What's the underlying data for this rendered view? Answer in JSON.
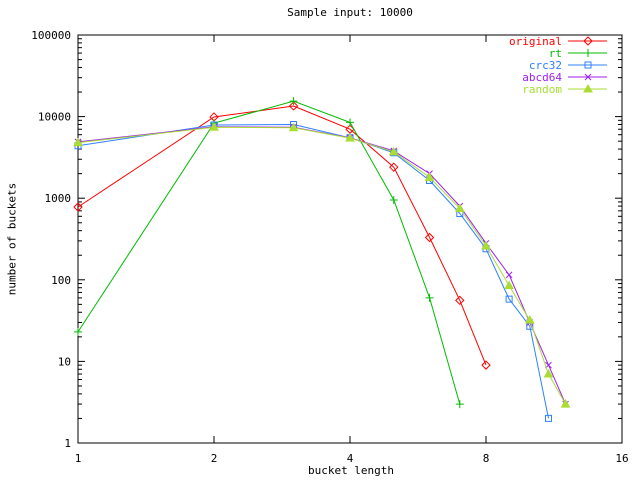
{
  "title": "Sample input: 10000",
  "colors": {
    "foreground": "#000000",
    "background": "#ffffff",
    "original": "#ff0000",
    "rt": "#00bb00",
    "crc32": "#2f80ff",
    "abcd64": "#a020f0",
    "random": "#aadd33"
  },
  "chart_data": {
    "type": "line",
    "title": "Sample input: 10000",
    "xlabel": "bucket length",
    "ylabel": "number of buckets",
    "x_scale": "log2",
    "y_scale": "log10",
    "xlim": [
      1,
      16
    ],
    "ylim": [
      1,
      100000
    ],
    "x_ticks": [
      1,
      2,
      4,
      8,
      16
    ],
    "x_tick_labels": [
      "1",
      "2",
      "4",
      "8",
      "16"
    ],
    "y_ticks": [
      1,
      10,
      100,
      1000,
      10000,
      100000
    ],
    "y_tick_labels": [
      "1",
      "10",
      "100",
      "1000",
      "10000",
      "100000"
    ],
    "grid": false,
    "legend_position": "top-right-inside",
    "series": [
      {
        "name": "original",
        "color": "#ff0000",
        "marker": "diamond",
        "points": [
          [
            1,
            780
          ],
          [
            2,
            9900
          ],
          [
            3,
            13500
          ],
          [
            4,
            7000
          ],
          [
            5,
            2400
          ],
          [
            6,
            330
          ],
          [
            7,
            56
          ],
          [
            8,
            9
          ]
        ]
      },
      {
        "name": "rt",
        "color": "#00bb00",
        "marker": "plus",
        "points": [
          [
            1,
            23
          ],
          [
            2,
            8300
          ],
          [
            3,
            15500
          ],
          [
            4,
            8500
          ],
          [
            5,
            950
          ],
          [
            6,
            60
          ],
          [
            7,
            3
          ]
        ]
      },
      {
        "name": "crc32",
        "color": "#2f80ff",
        "marker": "square",
        "points": [
          [
            1,
            4400
          ],
          [
            2,
            7900
          ],
          [
            3,
            8000
          ],
          [
            4,
            5500
          ],
          [
            5,
            3600
          ],
          [
            6,
            1650
          ],
          [
            7,
            650
          ],
          [
            8,
            240
          ],
          [
            9,
            58
          ],
          [
            10,
            27
          ],
          [
            11,
            2
          ]
        ]
      },
      {
        "name": "abcd64",
        "color": "#a020f0",
        "marker": "cross",
        "points": [
          [
            1,
            4900
          ],
          [
            2,
            7500
          ],
          [
            3,
            7400
          ],
          [
            4,
            5500
          ],
          [
            5,
            3800
          ],
          [
            6,
            2000
          ],
          [
            7,
            800
          ],
          [
            8,
            280
          ],
          [
            9,
            115
          ],
          [
            10,
            30
          ],
          [
            11,
            9
          ],
          [
            12,
            3
          ]
        ]
      },
      {
        "name": "random",
        "color": "#aadd33",
        "marker": "triangle",
        "points": [
          [
            1,
            4800
          ],
          [
            2,
            7400
          ],
          [
            3,
            7300
          ],
          [
            4,
            5450
          ],
          [
            5,
            3700
          ],
          [
            6,
            1800
          ],
          [
            7,
            750
          ],
          [
            8,
            260
          ],
          [
            9,
            85
          ],
          [
            10,
            32
          ],
          [
            11,
            7
          ],
          [
            12,
            3
          ]
        ]
      }
    ]
  }
}
